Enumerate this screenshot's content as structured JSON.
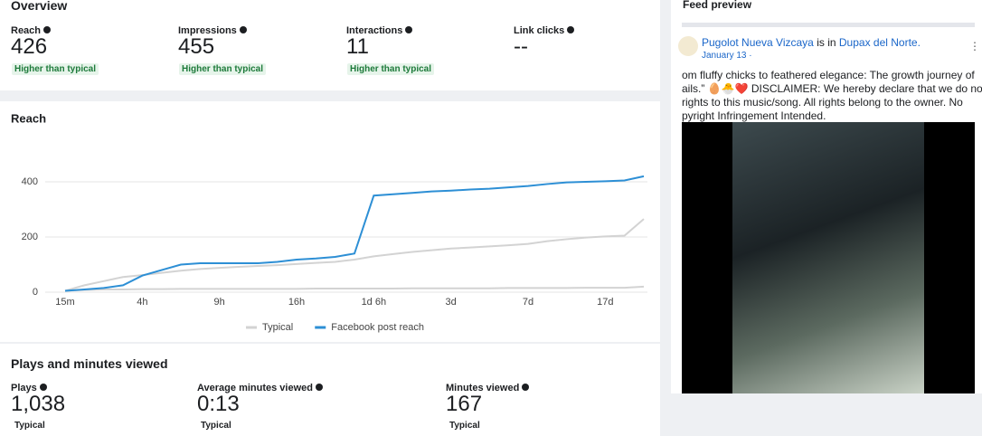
{
  "overview": {
    "title": "Overview",
    "metrics": [
      {
        "label": "Reach",
        "value": "426",
        "badge": "Higher than typical"
      },
      {
        "label": "Impressions",
        "value": "455",
        "badge": "Higher than typical"
      },
      {
        "label": "Interactions",
        "value": "11",
        "badge": "Higher than typical"
      },
      {
        "label": "Link clicks",
        "value": "--"
      }
    ]
  },
  "chart_data": {
    "type": "line",
    "title": "Reach",
    "categories": [
      "15m",
      null,
      null,
      null,
      "4h",
      null,
      null,
      null,
      "9h",
      null,
      null,
      null,
      "16h",
      null,
      null,
      null,
      "1d 6h",
      null,
      null,
      null,
      "3d",
      null,
      null,
      null,
      "7d",
      null,
      null,
      null,
      "17d",
      null,
      null
    ],
    "series": [
      {
        "name": "Typical",
        "color": "#d3d3d3",
        "values": [
          5,
          25,
          40,
          55,
          62,
          70,
          78,
          84,
          88,
          92,
          95,
          98,
          102,
          106,
          110,
          118,
          130,
          138,
          146,
          152,
          158,
          162,
          166,
          170,
          175,
          185,
          192,
          198,
          202,
          205,
          265
        ],
        "range_low": [
          5,
          8,
          10,
          10,
          11,
          11,
          12,
          12,
          12,
          12,
          12,
          12,
          12,
          13,
          13,
          13,
          13,
          13,
          14,
          14,
          14,
          14,
          14,
          15,
          15,
          15,
          15,
          16,
          16,
          16,
          20
        ]
      },
      {
        "name": "Facebook post reach",
        "color": "#2d8fd5",
        "values": [
          5,
          10,
          15,
          25,
          60,
          80,
          100,
          105,
          105,
          105,
          105,
          110,
          118,
          122,
          128,
          140,
          350,
          355,
          360,
          365,
          368,
          372,
          375,
          380,
          385,
          392,
          398,
          400,
          402,
          405,
          420
        ]
      }
    ],
    "ylim": [
      0,
      440
    ],
    "yticks": [
      0,
      200,
      400
    ],
    "grid": true
  },
  "plays": {
    "title": "Plays and minutes viewed",
    "metrics": [
      {
        "label": "Plays",
        "value": "1,038",
        "badge": "Typical"
      },
      {
        "label": "Average minutes viewed",
        "value": "0:13",
        "badge": "Typical"
      },
      {
        "label": "Minutes viewed",
        "value": "167",
        "badge": "Typical"
      }
    ]
  },
  "feed_preview": {
    "title": "Feed preview",
    "page": "Pugolot Nueva Vizcaya",
    "connector": "is in",
    "place": "Dupax del Norte.",
    "date": "January 13 ·",
    "text": [
      "om fluffy chicks to feathered elegance: The growth journey of",
      "ails.” 🥚🐣❤️ DISCLAIMER: We hereby declare that we do not own",
      " rights to this music/song. All rights belong to the owner. No",
      "pyright Infringement Intended."
    ]
  }
}
